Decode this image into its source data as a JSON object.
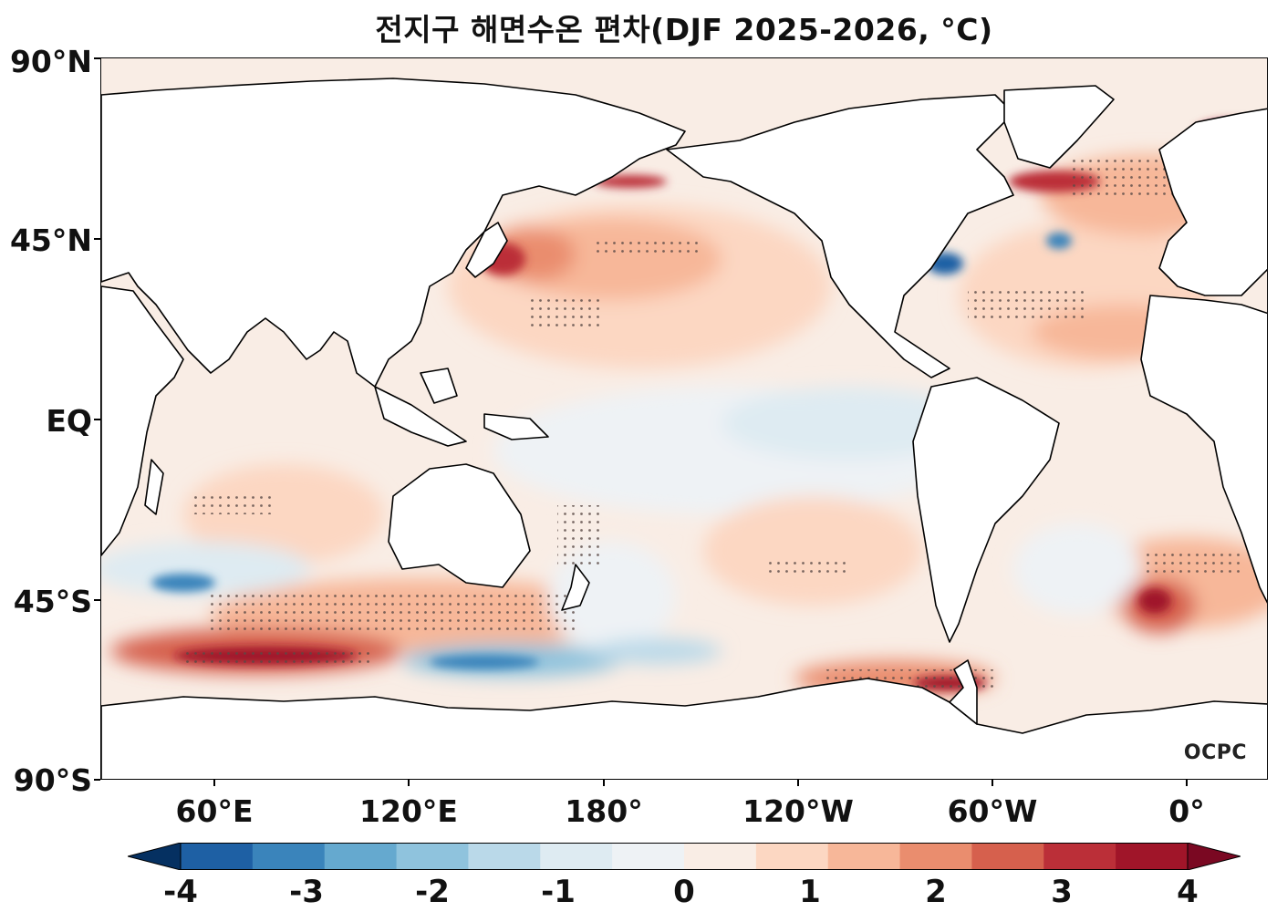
{
  "title": "전지구 해면수온 편차(DJF 2025-2026, °C)",
  "logo": "OCPC",
  "y_axis": {
    "labels": [
      "90°N",
      "45°N",
      "EQ",
      "45°S",
      "90°S"
    ]
  },
  "x_axis": {
    "labels": [
      "60°E",
      "120°E",
      "180°",
      "120°W",
      "60°W",
      "0°"
    ]
  },
  "colorbar": {
    "labels": [
      "-4",
      "-3",
      "-2",
      "-1",
      "0",
      "1",
      "2",
      "3",
      "4"
    ],
    "levels": [
      -4,
      -3.5,
      -3,
      -2.5,
      -2,
      -1.5,
      -1,
      -0.5,
      0,
      0.5,
      1,
      1.5,
      2,
      2.5,
      3,
      3.5,
      4
    ],
    "colors": [
      "#053061",
      "#1e60a4",
      "#3a84bb",
      "#65a9cf",
      "#8fc3dd",
      "#bad9e9",
      "#deebf2",
      "#eef2f5",
      "#f9ede5",
      "#fcd7c2",
      "#f7b799",
      "#ea8d6e",
      "#d6604d",
      "#bb2f38",
      "#a01529",
      "#7a0822"
    ],
    "extend": "both"
  }
}
